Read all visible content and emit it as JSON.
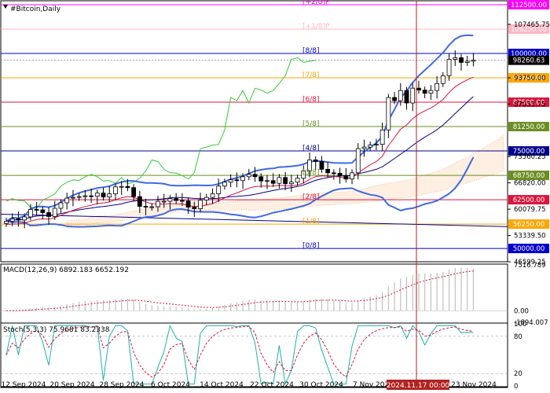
{
  "symbol_label": "#Bitcoin,Daily",
  "murrey": [
    {
      "label": "[+2/8]P",
      "price": 112500,
      "price_text": "112500.00",
      "color": "#ff00ff",
      "solid": true
    },
    {
      "label": "[+1/8]P",
      "price": 106250,
      "price_text": "106250.00",
      "color": "#ffb6c1",
      "solid": true
    },
    {
      "label": "[8/8]",
      "price": 100000,
      "price_text": "100000.00",
      "color": "#0000cd",
      "solid": true
    },
    {
      "label": "[7/8]",
      "price": 93750,
      "price_text": "93750.00",
      "color": "#ffa500",
      "solid": true
    },
    {
      "label": "[6/8]",
      "price": 87500,
      "price_text": "87500.00",
      "color": "#dc143c",
      "solid": true
    },
    {
      "label": "[5/8]",
      "price": 81250,
      "price_text": "81250.00",
      "color": "#6b8e23",
      "solid": true
    },
    {
      "label": "[4/8]",
      "price": 75000,
      "price_text": "75000.00",
      "color": "#00008b",
      "solid": true
    },
    {
      "label": "[3/8]",
      "price": 68750,
      "price_text": "68750.00",
      "color": "#6b8e23",
      "solid": true
    },
    {
      "label": "[2/8]",
      "price": 62500,
      "price_text": "62500.00",
      "color": "#dc143c",
      "solid": true
    },
    {
      "label": "[1/8]",
      "price": 56250,
      "price_text": "56250.00",
      "color": "#ffa500",
      "solid": true
    },
    {
      "label": "[0/8]",
      "price": 50000,
      "price_text": "50000.00",
      "color": "#0000cd",
      "solid": true
    }
  ],
  "current_price": {
    "value": 98260.63,
    "text": "98260.63"
  },
  "price_ticks": [
    "107465.75",
    "93750.00",
    "87033.75",
    "73560.25",
    "66820.00",
    "60079.75",
    "53339.50",
    "46599.25"
  ],
  "macd": {
    "label": "MACD(12,26,9) 6892.183 6652.192",
    "ticks": [
      "7516.789",
      "0.00",
      "-1894.007"
    ]
  },
  "stoch": {
    "label": "Stoch(5,3,3) 75.9681 83.2338",
    "ticks": [
      "100",
      "80",
      "20",
      "0"
    ]
  },
  "time_labels": [
    "12 Sep 2024",
    "20 Sep 2024",
    "28 Sep 2024",
    "6 Oct 2024",
    "14 Oct 2024",
    "22 Oct 2024",
    "30 Oct 2024",
    "7 Nov 2024",
    "23 Nov 2024"
  ],
  "crosshair_label": "2024.11.17 00:00",
  "colors": {
    "bb": "#4169e1",
    "ema": "#dc143c",
    "ichimoku": "#32cd32",
    "cloud": "#f4a460",
    "macd_hist": "#c0c0c0",
    "macd_signal": "#dc143c",
    "stoch_main": "#20b2aa",
    "stoch_signal": "#dc143c",
    "crosshair": "#b22222"
  },
  "chart_data": {
    "type": "candlestick",
    "dates": [
      "2024-09-09",
      "2024-09-10",
      "2024-09-11",
      "2024-09-12",
      "2024-09-13",
      "2024-09-14",
      "2024-09-15",
      "2024-09-16",
      "2024-09-17",
      "2024-09-18",
      "2024-09-19",
      "2024-09-20",
      "2024-09-21",
      "2024-09-22",
      "2024-09-23",
      "2024-09-24",
      "2024-09-25",
      "2024-09-26",
      "2024-09-27",
      "2024-09-28",
      "2024-09-29",
      "2024-09-30",
      "2024-10-01",
      "2024-10-02",
      "2024-10-03",
      "2024-10-04",
      "2024-10-05",
      "2024-10-06",
      "2024-10-07",
      "2024-10-08",
      "2024-10-09",
      "2024-10-10",
      "2024-10-11",
      "2024-10-12",
      "2024-10-13",
      "2024-10-14",
      "2024-10-15",
      "2024-10-16",
      "2024-10-17",
      "2024-10-18",
      "2024-10-19",
      "2024-10-20",
      "2024-10-21",
      "2024-10-22",
      "2024-10-23",
      "2024-10-24",
      "2024-10-25",
      "2024-10-26",
      "2024-10-27",
      "2024-10-28",
      "2024-10-29",
      "2024-10-30",
      "2024-10-31",
      "2024-11-01",
      "2024-11-02",
      "2024-11-03",
      "2024-11-04",
      "2024-11-05",
      "2024-11-06",
      "2024-11-07",
      "2024-11-08",
      "2024-11-09",
      "2024-11-10",
      "2024-11-11",
      "2024-11-12",
      "2024-11-13",
      "2024-11-14",
      "2024-11-15",
      "2024-11-16",
      "2024-11-17",
      "2024-11-18",
      "2024-11-19",
      "2024-11-20",
      "2024-11-21",
      "2024-11-22",
      "2024-11-23",
      "2024-11-24",
      "2024-11-25"
    ],
    "close": [
      57000,
      57600,
      57300,
      58100,
      60000,
      59900,
      59200,
      58200,
      60300,
      61700,
      62900,
      63100,
      63300,
      63500,
      63400,
      64200,
      63200,
      64000,
      65800,
      65900,
      65600,
      63300,
      60800,
      60600,
      60700,
      62100,
      62100,
      62800,
      62300,
      62200,
      60600,
      60200,
      62400,
      63100,
      64000,
      66000,
      67000,
      67600,
      67400,
      68400,
      69000,
      68400,
      67300,
      67400,
      66700,
      68200,
      66600,
      67000,
      68000,
      69900,
      72700,
      72300,
      70300,
      69400,
      69300,
      68700,
      67800,
      69400,
      75600,
      76000,
      76500,
      76700,
      80400,
      88700,
      87900,
      90500,
      87300,
      91100,
      90600,
      89800,
      90500,
      92300,
      94300,
      98500,
      98900,
      97700,
      98000,
      98260
    ],
    "series": [
      {
        "name": "Bollinger Bands",
        "bands": [
          "upper",
          "middle",
          "lower"
        ]
      },
      {
        "name": "EMA"
      },
      {
        "name": "Ichimoku"
      }
    ],
    "ylim": [
      46599.25,
      113500
    ],
    "subcharts": [
      {
        "name": "MACD(12,26,9)",
        "values": [
          6892.183,
          6652.192
        ]
      },
      {
        "name": "Stoch(5,3,3)",
        "values": [
          75.9681,
          83.2338
        ]
      }
    ]
  }
}
